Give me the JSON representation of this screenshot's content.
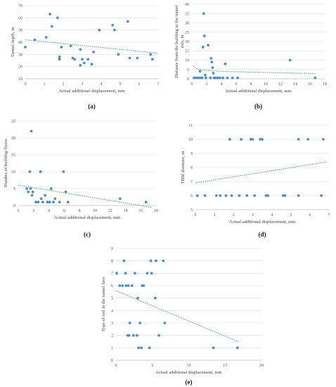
{
  "chart_data": [
    {
      "id": "a",
      "type": "scatter",
      "panel_label": "(a)",
      "xlabel": "Actual additional displacement, mm",
      "ylabel": "Tunnel depth, m",
      "xlim": [
        0,
        7
      ],
      "ylim": [
        10,
        70
      ],
      "xticks": [
        0,
        1,
        2,
        3,
        4,
        5,
        6,
        7
      ],
      "yticks": [
        10,
        20,
        30,
        40,
        50,
        60,
        70
      ],
      "grid": true,
      "points": [
        [
          0,
          36
        ],
        [
          0.5,
          42
        ],
        [
          1.1,
          44
        ],
        [
          1.3,
          63
        ],
        [
          1.4,
          53
        ],
        [
          1.7,
          60
        ],
        [
          1.8,
          28
        ],
        [
          1.8,
          26
        ],
        [
          1.9,
          36
        ],
        [
          2.4,
          37
        ],
        [
          2.5,
          27
        ],
        [
          2.6,
          26
        ],
        [
          2.9,
          34
        ],
        [
          2.9,
          21
        ],
        [
          3.0,
          26
        ],
        [
          3.1,
          23
        ],
        [
          3.3,
          26
        ],
        [
          3.5,
          22
        ],
        [
          3.6,
          32
        ],
        [
          3.9,
          50
        ],
        [
          4.6,
          54
        ],
        [
          4.7,
          50
        ],
        [
          4.9,
          30
        ],
        [
          5.4,
          57
        ],
        [
          5.5,
          27
        ],
        [
          5.9,
          27
        ],
        [
          6.6,
          30
        ],
        [
          6.7,
          26
        ]
      ],
      "trend": [
        [
          0,
          42
        ],
        [
          7,
          31
        ]
      ]
    },
    {
      "id": "b",
      "type": "scatter",
      "panel_label": "(b)",
      "xlabel": "Actual additional displacement, mm",
      "ylabel": "Distance from the building to the tunnel axis, m",
      "ylabel_lines": [
        "Distance from the building to the tunnel",
        "axis, m"
      ],
      "xlim": [
        0,
        18
      ],
      "ylim": [
        0,
        40
      ],
      "xticks": [
        0,
        2,
        4,
        6,
        8,
        10,
        12,
        14,
        16,
        18
      ],
      "yticks": [
        0,
        5,
        10,
        15,
        20,
        25,
        30,
        35,
        40
      ],
      "grid": true,
      "points": [
        [
          0.3,
          0.5
        ],
        [
          0.6,
          0.5
        ],
        [
          0.9,
          0.5
        ],
        [
          1.1,
          4
        ],
        [
          1.2,
          0.5
        ],
        [
          1.4,
          0.5
        ],
        [
          1.5,
          17
        ],
        [
          1.6,
          35
        ],
        [
          1.7,
          23
        ],
        [
          1.8,
          2
        ],
        [
          1.9,
          0.5
        ],
        [
          2.2,
          18
        ],
        [
          2.5,
          0.5
        ],
        [
          2.6,
          11
        ],
        [
          2.7,
          9
        ],
        [
          2.8,
          6
        ],
        [
          2.9,
          3
        ],
        [
          3.0,
          0.5
        ],
        [
          3.2,
          0.5
        ],
        [
          3.5,
          0.5
        ],
        [
          3.8,
          0.5
        ],
        [
          4.2,
          0.5
        ],
        [
          4.5,
          8
        ],
        [
          4.8,
          0.5
        ],
        [
          5.5,
          0.5
        ],
        [
          6.2,
          0.5
        ],
        [
          13.3,
          10
        ],
        [
          16.7,
          0.5
        ]
      ],
      "trend_curve": [
        [
          0.2,
          7
        ],
        [
          0.6,
          5.6
        ],
        [
          1,
          5
        ],
        [
          2,
          4.5
        ],
        [
          4,
          4
        ],
        [
          6,
          3.8
        ],
        [
          8,
          3.6
        ],
        [
          10,
          3.4
        ],
        [
          12,
          3.2
        ],
        [
          14,
          3.0
        ],
        [
          16,
          2.9
        ],
        [
          16.7,
          2.8
        ]
      ]
    },
    {
      "id": "c",
      "type": "scatter",
      "panel_label": "(c)",
      "xlabel": "Actual additional displacement, mm",
      "ylabel": "Number of building floors",
      "xlim": [
        0,
        18
      ],
      "ylim": [
        0,
        25
      ],
      "xticks": [
        0,
        2,
        4,
        6,
        8,
        10,
        12,
        14,
        16,
        18
      ],
      "yticks": [
        0,
        5,
        10,
        15,
        20,
        25
      ],
      "grid": true,
      "points": [
        [
          1.1,
          5
        ],
        [
          1.3,
          4
        ],
        [
          1.5,
          10
        ],
        [
          1.6,
          5
        ],
        [
          1.7,
          22
        ],
        [
          1.8,
          3
        ],
        [
          1.9,
          4
        ],
        [
          2.3,
          1
        ],
        [
          2.6,
          1
        ],
        [
          2.9,
          10
        ],
        [
          3.0,
          2
        ],
        [
          3.2,
          1
        ],
        [
          3.5,
          3
        ],
        [
          3.8,
          1
        ],
        [
          4.1,
          1
        ],
        [
          4.3,
          5
        ],
        [
          4.6,
          1
        ],
        [
          4.8,
          2
        ],
        [
          5.4,
          1
        ],
        [
          5.9,
          10
        ],
        [
          6.2,
          4
        ],
        [
          6.5,
          1
        ],
        [
          13.3,
          2
        ],
        [
          16.7,
          1
        ]
      ],
      "trend": [
        [
          0,
          6
        ],
        [
          17.5,
          -0.6
        ]
      ]
    },
    {
      "id": "d",
      "type": "scatter",
      "panel_label": "(d)",
      "xlabel": "Actual additional displacement, mm",
      "ylabel": "TBM diameter, m",
      "xlim": [
        0,
        7
      ],
      "ylim": [
        5,
        11
      ],
      "xticks": [
        0,
        1,
        2,
        3,
        4,
        5,
        6,
        7
      ],
      "yticks": [
        5,
        6,
        7,
        8,
        9,
        10,
        11
      ],
      "grid": true,
      "points": [
        [
          0.1,
          6
        ],
        [
          0.5,
          6
        ],
        [
          1.1,
          6
        ],
        [
          1.3,
          6
        ],
        [
          1.6,
          6
        ],
        [
          1.8,
          10
        ],
        [
          1.9,
          6
        ],
        [
          2.3,
          6
        ],
        [
          2.4,
          10
        ],
        [
          2.7,
          6
        ],
        [
          2.9,
          10
        ],
        [
          3.0,
          10
        ],
        [
          3.1,
          6
        ],
        [
          3.4,
          10
        ],
        [
          3.5,
          10
        ],
        [
          3.7,
          6
        ],
        [
          3.8,
          6
        ],
        [
          4.6,
          6
        ],
        [
          4.7,
          6
        ],
        [
          5.4,
          10
        ],
        [
          5.4,
          6
        ],
        [
          5.9,
          10
        ],
        [
          6.6,
          6
        ],
        [
          6.7,
          10
        ]
      ],
      "trend": [
        [
          0,
          6.9
        ],
        [
          6.9,
          8.4
        ]
      ]
    },
    {
      "id": "e",
      "type": "scatter",
      "panel_label": "(e)",
      "xlabel": "Actual additional displacement, mm",
      "ylabel": "Type of soil in the tunnel face",
      "xlim": [
        0,
        20
      ],
      "ylim": [
        0,
        9
      ],
      "xticks": [
        0,
        5,
        10,
        15,
        20
      ],
      "yticks": [
        0,
        1,
        2,
        3,
        4,
        5,
        6,
        7,
        8,
        9
      ],
      "grid": true,
      "points": [
        [
          0.1,
          7
        ],
        [
          0.5,
          6
        ],
        [
          0.9,
          6
        ],
        [
          1.1,
          8
        ],
        [
          1.3,
          7
        ],
        [
          1.4,
          6
        ],
        [
          1.6,
          2
        ],
        [
          1.7,
          6
        ],
        [
          1.8,
          2
        ],
        [
          1.9,
          3
        ],
        [
          2.2,
          6
        ],
        [
          2.4,
          2
        ],
        [
          2.6,
          7
        ],
        [
          2.9,
          2
        ],
        [
          3.0,
          5
        ],
        [
          3.1,
          1
        ],
        [
          3.3,
          3
        ],
        [
          3.5,
          1
        ],
        [
          3.6,
          6
        ],
        [
          3.8,
          6
        ],
        [
          4.3,
          7
        ],
        [
          4.6,
          1
        ],
        [
          4.8,
          8
        ],
        [
          4.9,
          7
        ],
        [
          5.4,
          5
        ],
        [
          5.5,
          8
        ],
        [
          5.9,
          2
        ],
        [
          6.5,
          8
        ],
        [
          6.7,
          3
        ],
        [
          13.4,
          1
        ],
        [
          16.7,
          1
        ]
      ],
      "trend": [
        [
          0,
          5.6
        ],
        [
          16.8,
          1.5
        ]
      ]
    }
  ]
}
